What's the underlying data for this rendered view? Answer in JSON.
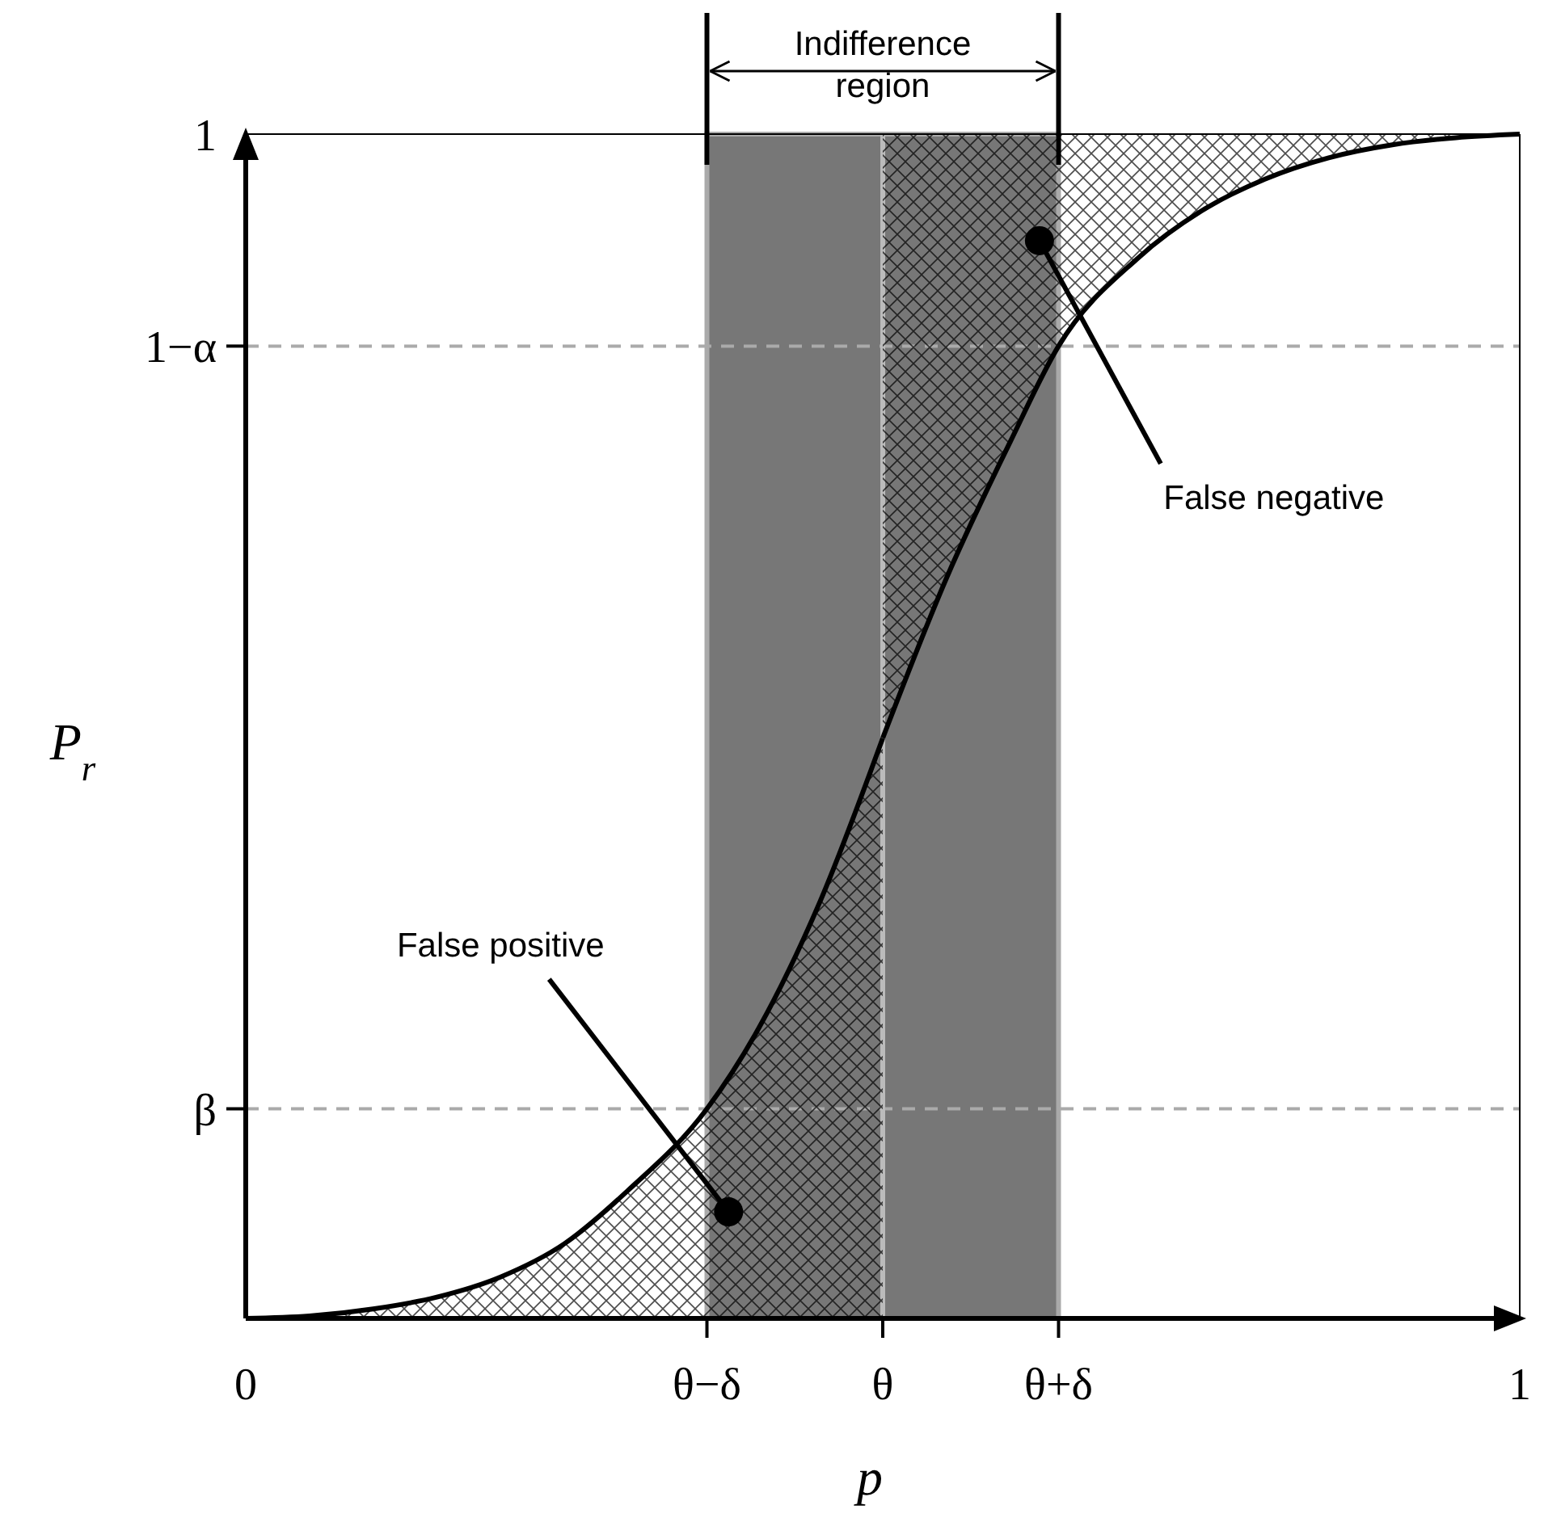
{
  "chart_data": {
    "type": "line",
    "xlabel": "p",
    "ylabel": "P$_{r}$",
    "xlim": [
      0,
      1
    ],
    "ylim": [
      0,
      1
    ],
    "xticks": [
      0,
      {
        "value": 0.362,
        "label": "θ−δ"
      },
      {
        "value": 0.5,
        "label": "θ"
      },
      {
        "value": 0.638,
        "label": "θ+δ"
      },
      1
    ],
    "yticks": [
      {
        "value": 0.177,
        "label": "β"
      },
      {
        "value": 0.821,
        "label": "1−α"
      },
      1
    ],
    "series": [
      {
        "type": "area",
        "color": "#000000",
        "x": [
          0,
          0.05,
          0.1,
          0.15,
          0.2,
          0.25,
          0.3,
          0.362,
          0.4,
          0.45,
          0.5
        ],
        "values": [
          0,
          0.002,
          0.008,
          0.018,
          0.035,
          0.063,
          0.108,
          0.177,
          0.24,
          0.35,
          0.49
        ]
      },
      {
        "type": "line",
        "color": "#000000",
        "x": [
          0.5,
          0.55,
          0.6,
          0.638,
          0.7,
          0.75,
          0.8,
          0.85,
          0.9,
          0.95,
          1
        ],
        "values": [
          0.49,
          0.625,
          0.74,
          0.821,
          0.895,
          0.935,
          0.962,
          0.98,
          0.991,
          0.997,
          1
        ],
        "lower": [
          0.49,
          0.625,
          0.74,
          0.821,
          0.895,
          0.935,
          0.962,
          0.98,
          0.991,
          0.997,
          1
        ],
        "upper": [
          1,
          1,
          1,
          1,
          1,
          1,
          1,
          1,
          1,
          1,
          1
        ]
      }
    ],
    "bands": [
      {
        "axis": "x",
        "from": 0.362,
        "to": 0.5,
        "color": "#777777"
      },
      {
        "axis": "x",
        "from": 0.5,
        "to": 0.638,
        "color": "#777777"
      }
    ],
    "ref_lines": [
      {
        "axis": "y",
        "value": 0.177,
        "color": "#aaaaaa",
        "line_style": "dashed"
      },
      {
        "axis": "y",
        "value": 0.821,
        "color": "#aaaaaa",
        "line_style": "dashed"
      },
      {
        "axis": "x",
        "value": 0.5,
        "color": "#bbbbbb",
        "line_style": "solid"
      }
    ],
    "annotations": [
      "Indifference region",
      {
        "text": "False positive",
        "x": 0.379,
        "y": 0.09
      },
      {
        "text": "False negative",
        "x": 0.623,
        "y": 0.91
      }
    ],
    "grid": false
  }
}
